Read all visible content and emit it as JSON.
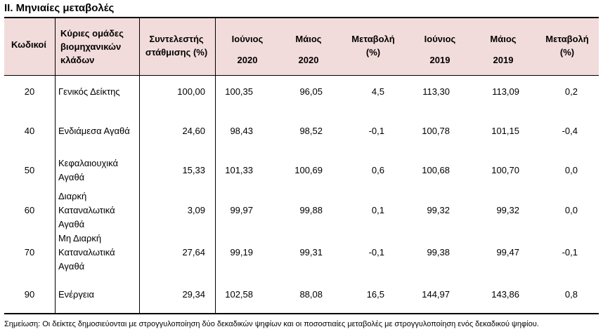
{
  "title": "II. Μηνιαίες μεταβολές",
  "headers": {
    "code": "Κωδικοί",
    "groups": [
      "Κύριες ομάδες",
      "βιομηχανικών",
      "κλάδων"
    ],
    "weight": [
      "Συντελεστής",
      "στάθμισης (%)"
    ],
    "june2020": [
      "Ιούνιος",
      "2020"
    ],
    "may2020": [
      "Μάιος",
      "2020"
    ],
    "change2020": [
      "Μεταβολή",
      "(%)"
    ],
    "june2019": [
      "Ιούνιος",
      "2019"
    ],
    "may2019": [
      "Μάιος",
      "2019"
    ],
    "change2019": [
      "Μεταβολή",
      "(%)"
    ]
  },
  "rows": [
    {
      "code": "20",
      "name": [
        "Γενικός Δείκτης"
      ],
      "weight": "100,00",
      "jun20": "100,35",
      "may20": "96,05",
      "chg20": "4,5",
      "jun19": "113,30",
      "may19": "113,09",
      "chg19": "0,2"
    },
    {
      "code": "40",
      "name": [
        "Ενδιάμεσα Αγαθά"
      ],
      "weight": "24,60",
      "jun20": "98,43",
      "may20": "98,52",
      "chg20": "-0,1",
      "jun19": "100,78",
      "may19": "101,15",
      "chg19": "-0,4"
    },
    {
      "code": "50",
      "name": [
        "Κεφαλαιουχικά",
        "Αγαθά"
      ],
      "weight": "15,33",
      "jun20": "101,33",
      "may20": "100,69",
      "chg20": "0,6",
      "jun19": "100,68",
      "may19": "100,70",
      "chg19": "0,0"
    },
    {
      "code": "60",
      "name": [
        "Διαρκή",
        "Καταναλωτικά",
        "Αγαθά"
      ],
      "weight": "3,09",
      "jun20": "99,97",
      "may20": "99,88",
      "chg20": "0,1",
      "jun19": "99,32",
      "may19": "99,32",
      "chg19": "0,0"
    },
    {
      "code": "70",
      "name": [
        "Μη Διαρκή",
        "Καταναλωτικά",
        "Αγαθά"
      ],
      "weight": "27,64",
      "jun20": "99,19",
      "may20": "99,31",
      "chg20": "-0,1",
      "jun19": "99,38",
      "may19": "99,47",
      "chg19": "-0,1"
    },
    {
      "code": "90",
      "name": [
        "Ενέργεια"
      ],
      "weight": "29,34",
      "jun20": "102,58",
      "may20": "88,08",
      "chg20": "16,5",
      "jun19": "144,97",
      "may19": "143,86",
      "chg19": "0,8"
    }
  ],
  "note": "Σημείωση: Οι δείκτες δημοσιεύονται με στρογγυλοποίηση δύο δεκαδικών ψηφίων και οι ποσοστιαίες μεταβολές με στρογγυλοποίηση ενός δεκαδικού ψηφίου."
}
